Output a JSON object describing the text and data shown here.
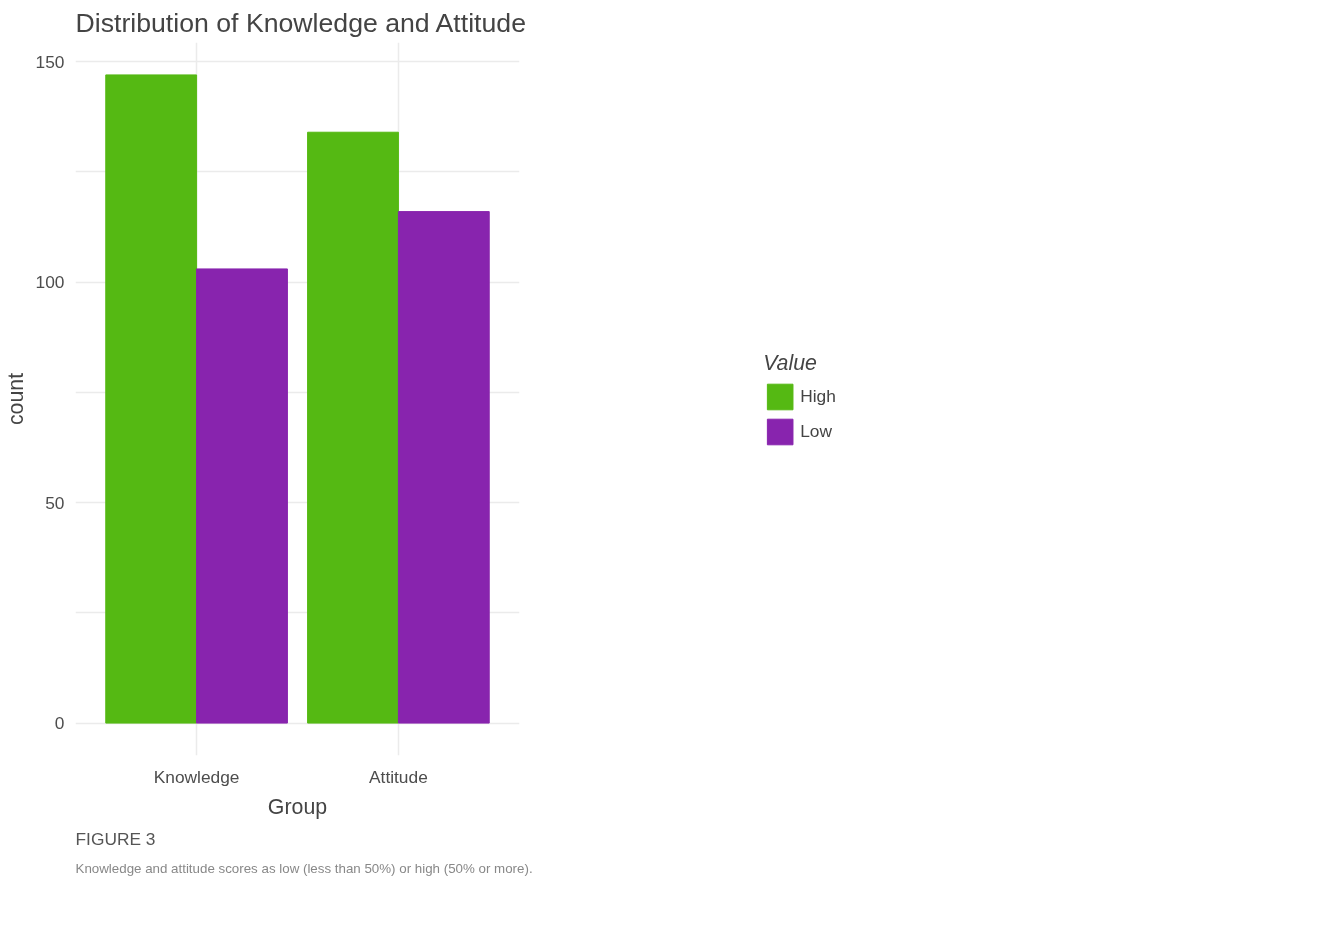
{
  "chart_data": {
    "type": "bar",
    "title": "Distribution of Knowledge and Attitude",
    "xlabel": "Group",
    "ylabel": "count",
    "legend_title": "Value",
    "categories": [
      "Knowledge",
      "Attitude"
    ],
    "series": [
      {
        "name": "High",
        "color": "#55b913",
        "values": [
          147,
          134
        ]
      },
      {
        "name": "Low",
        "color": "#8824ae",
        "values": [
          103,
          116
        ]
      }
    ],
    "ylim": [
      -7.35,
      154.35
    ],
    "yticks": [
      0,
      {
        "value": 25,
        "label": null
      },
      50,
      {
        "value": 75,
        "label": null
      },
      100,
      {
        "value": 125,
        "label": null
      },
      150
    ],
    "grid": true,
    "legend": "right",
    "annotations": [
      "FIGURE 3",
      "Knowledge and attitude scores as low (less than 50%) or high (50% or more)."
    ]
  }
}
